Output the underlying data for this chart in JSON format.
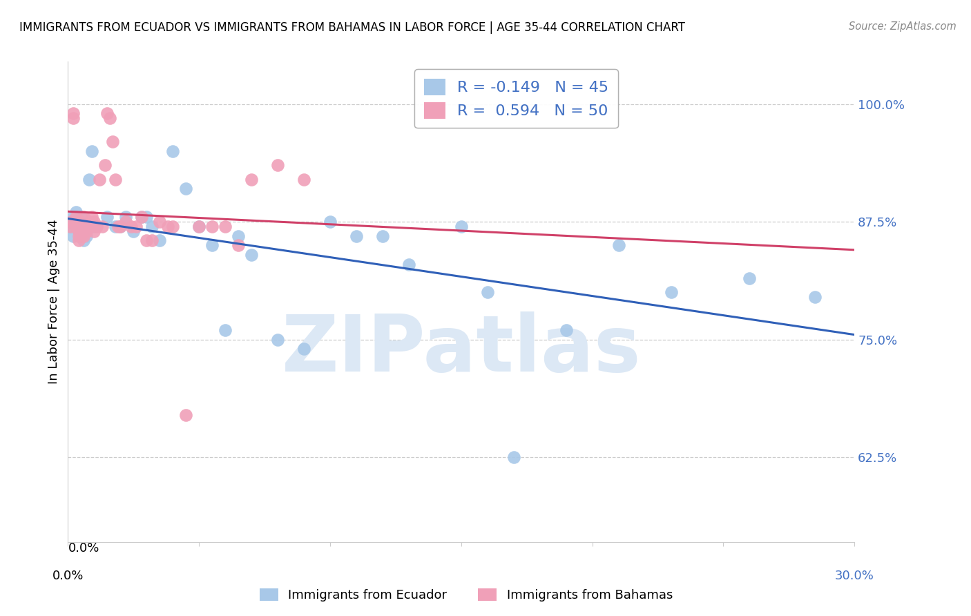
{
  "title": "IMMIGRANTS FROM ECUADOR VS IMMIGRANTS FROM BAHAMAS IN LABOR FORCE | AGE 35-44 CORRELATION CHART",
  "source": "Source: ZipAtlas.com",
  "ylabel": "In Labor Force | Age 35-44",
  "ylabel_ticks": [
    0.625,
    0.75,
    0.875,
    1.0
  ],
  "ylabel_tick_labels": [
    "62.5%",
    "75.0%",
    "87.5%",
    "100.0%"
  ],
  "xlim": [
    0.0,
    0.3
  ],
  "ylim": [
    0.535,
    1.045
  ],
  "ecuador_R": -0.149,
  "ecuador_N": 45,
  "bahamas_R": 0.594,
  "bahamas_N": 50,
  "ecuador_color": "#a8c8e8",
  "bahamas_color": "#f0a0b8",
  "ecuador_line_color": "#3060b8",
  "bahamas_line_color": "#d04068",
  "watermark_text": "ZIPatlas",
  "watermark_color": "#dce8f5",
  "grid_color": "#cccccc",
  "spine_color": "#cccccc",
  "right_tick_color": "#4472c4",
  "ecuador_x": [
    0.001,
    0.001,
    0.002,
    0.002,
    0.003,
    0.003,
    0.004,
    0.004,
    0.005,
    0.005,
    0.006,
    0.007,
    0.008,
    0.009,
    0.01,
    0.015,
    0.018,
    0.02,
    0.022,
    0.025,
    0.028,
    0.03,
    0.032,
    0.035,
    0.04,
    0.045,
    0.05,
    0.055,
    0.06,
    0.065,
    0.07,
    0.08,
    0.09,
    0.1,
    0.11,
    0.12,
    0.13,
    0.15,
    0.16,
    0.17,
    0.19,
    0.21,
    0.23,
    0.26,
    0.285
  ],
  "ecuador_y": [
    0.875,
    0.87,
    0.88,
    0.86,
    0.875,
    0.885,
    0.875,
    0.865,
    0.88,
    0.87,
    0.855,
    0.86,
    0.92,
    0.95,
    0.87,
    0.88,
    0.87,
    0.87,
    0.88,
    0.865,
    0.88,
    0.88,
    0.87,
    0.855,
    0.95,
    0.91,
    0.87,
    0.85,
    0.76,
    0.86,
    0.84,
    0.75,
    0.74,
    0.875,
    0.86,
    0.86,
    0.83,
    0.87,
    0.8,
    0.625,
    0.76,
    0.85,
    0.8,
    0.815,
    0.795
  ],
  "bahamas_x": [
    0.001,
    0.001,
    0.002,
    0.002,
    0.003,
    0.003,
    0.003,
    0.004,
    0.004,
    0.004,
    0.005,
    0.005,
    0.005,
    0.006,
    0.006,
    0.006,
    0.007,
    0.007,
    0.008,
    0.008,
    0.009,
    0.01,
    0.01,
    0.011,
    0.012,
    0.013,
    0.014,
    0.015,
    0.016,
    0.017,
    0.018,
    0.019,
    0.02,
    0.022,
    0.024,
    0.026,
    0.028,
    0.03,
    0.032,
    0.035,
    0.038,
    0.04,
    0.045,
    0.05,
    0.055,
    0.06,
    0.065,
    0.07,
    0.08,
    0.09
  ],
  "bahamas_y": [
    0.875,
    0.87,
    0.985,
    0.99,
    0.87,
    0.88,
    0.875,
    0.865,
    0.855,
    0.86,
    0.875,
    0.865,
    0.86,
    0.88,
    0.87,
    0.86,
    0.87,
    0.865,
    0.87,
    0.875,
    0.88,
    0.865,
    0.875,
    0.87,
    0.92,
    0.87,
    0.935,
    0.99,
    0.985,
    0.96,
    0.92,
    0.87,
    0.87,
    0.875,
    0.87,
    0.87,
    0.88,
    0.855,
    0.855,
    0.875,
    0.87,
    0.87,
    0.67,
    0.87,
    0.87,
    0.87,
    0.85,
    0.92,
    0.935,
    0.92
  ]
}
